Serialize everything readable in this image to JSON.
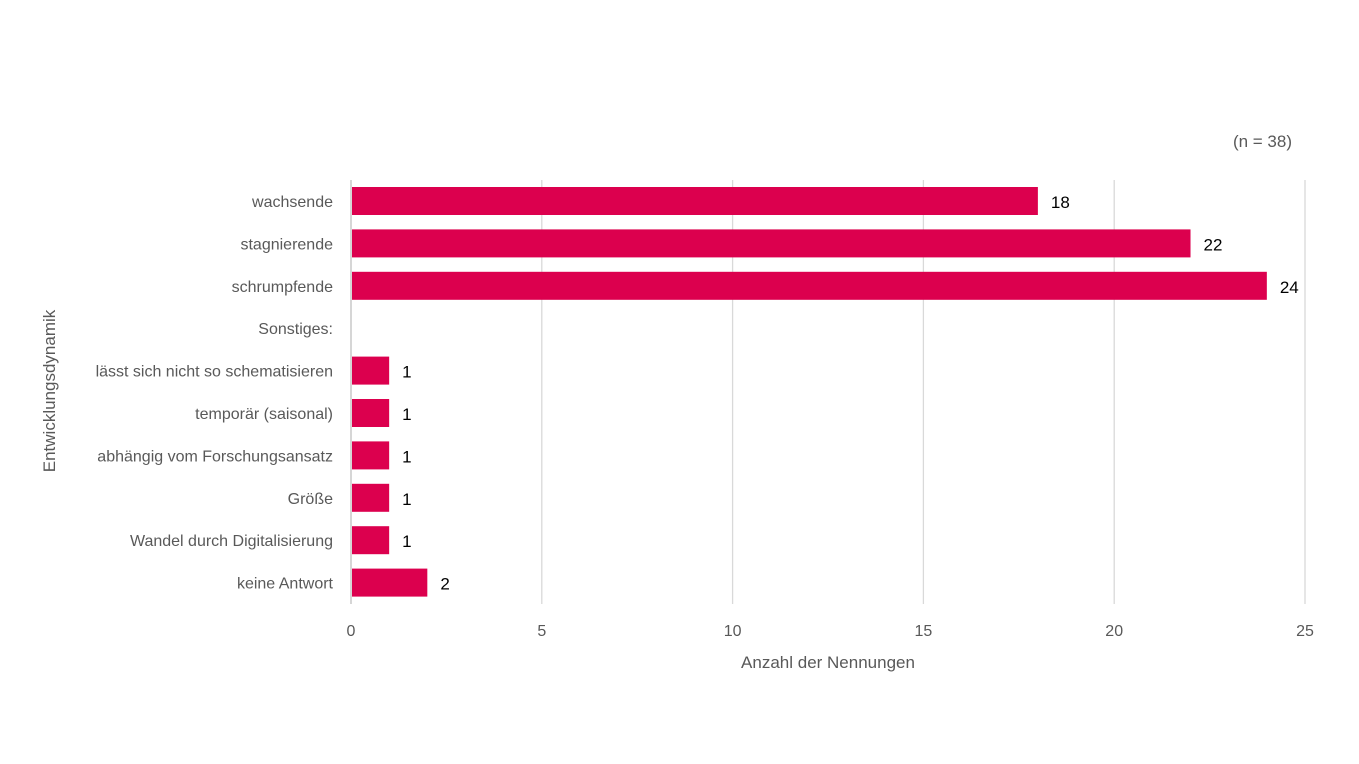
{
  "chart_data": {
    "type": "bar",
    "orientation": "horizontal",
    "note": "(n = 38)",
    "xlabel": "Anzahl der Nennungen",
    "ylabel": "Entwicklungsdynamik",
    "xlim": [
      0,
      25
    ],
    "xticks": [
      "0",
      "5",
      "10",
      "15",
      "20",
      "25"
    ],
    "grid": true,
    "bar_color": "#dc004e",
    "categories": [
      "wachsende",
      "stagnierende",
      "schrumpfende",
      "Sonstiges:",
      "lässt sich nicht so schematisieren",
      "temporär (saisonal)",
      "abhängig vom Forschungsansatz",
      "Größe",
      "Wandel durch Digitalisierung",
      "keine Antwort"
    ],
    "values": [
      18,
      22,
      24,
      null,
      1,
      1,
      1,
      1,
      1,
      2
    ],
    "value_labels": [
      "18",
      "22",
      "24",
      "",
      "1",
      "1",
      "1",
      "1",
      "1",
      "2"
    ]
  }
}
